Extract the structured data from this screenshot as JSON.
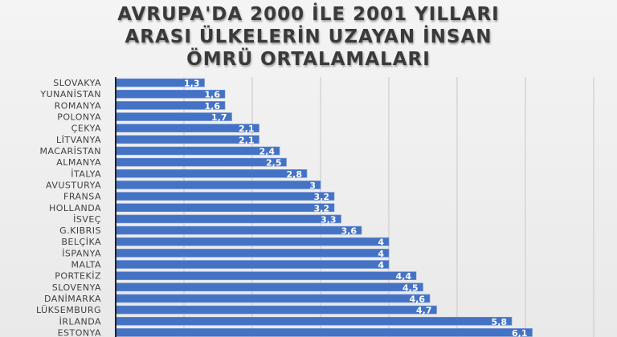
{
  "chart_data": {
    "type": "bar",
    "orientation": "horizontal",
    "title": "AVRUPA'DA 2000 İLE 2001 YILLARI ARASI ÜLKELERİN UZAYAN İNSAN ÖMRÜ ORTALAMALARI",
    "title_lines": [
      "AVRUPA'DA 2000 İLE 2001 YILLARI",
      "ARASI ÜLKELERİN UZAYAN İNSAN",
      "ÖMRÜ ORTALAMALARI"
    ],
    "categories": [
      "SLOVAKYA",
      "YUNANİSTAN",
      "ROMANYA",
      "POLONYA",
      "ÇEKYA",
      "LİTVANYA",
      "MACARİSTAN",
      "ALMANYA",
      "İTALYA",
      "AVUSTURYA",
      "FRANSA",
      "HOLLANDA",
      "İSVEÇ",
      "G.KIBRIS",
      "BELÇİKA",
      "İSPANYA",
      "MALTA",
      "PORTEKİZ",
      "SLOVENYA",
      "DANİMARKA",
      "LÜKSEMBURG",
      "İRLANDA",
      "ESTONYA"
    ],
    "values": [
      1.3,
      1.6,
      1.6,
      1.7,
      2.1,
      2.1,
      2.4,
      2.5,
      2.8,
      3,
      3.2,
      3.2,
      3.3,
      3.6,
      4,
      4,
      4,
      4.4,
      4.5,
      4.6,
      4.7,
      5.8,
      6.1
    ],
    "data_labels": [
      "1,3",
      "1,6",
      "1,6",
      "1,7",
      "2,1",
      "2,1",
      "2,4",
      "2,5",
      "2,8",
      "3",
      "3,2",
      "3,2",
      "3,3",
      "3,6",
      "4",
      "4",
      "4",
      "4,4",
      "4,5",
      "4,6",
      "4,7",
      "5,8",
      "6,1"
    ],
    "xlim": [
      0,
      7
    ],
    "x_ticks": [
      "0",
      "1",
      "2",
      "3",
      "4",
      "5",
      "6",
      "7"
    ],
    "grid": true,
    "legend": "none",
    "bar_color": "#4472c4",
    "xlabel": "",
    "ylabel": ""
  }
}
